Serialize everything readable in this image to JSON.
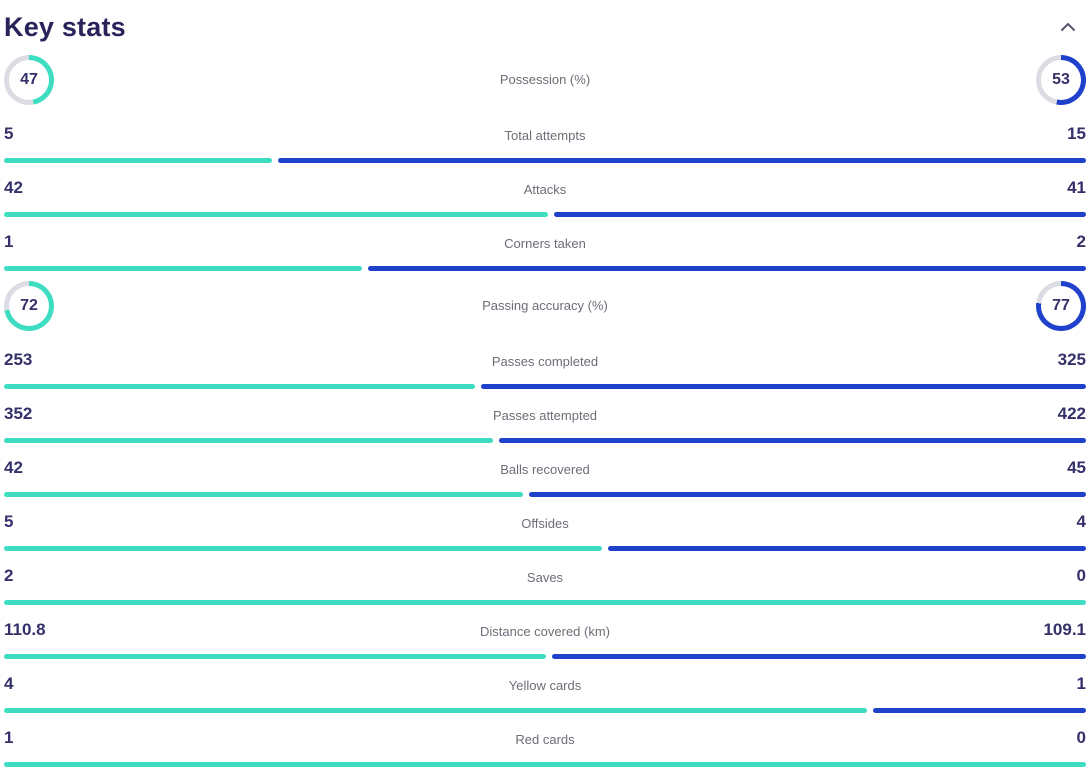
{
  "header": {
    "title": "Key stats",
    "collapse_icon": "chevron-up-icon"
  },
  "colors": {
    "home": "#3eddc1",
    "away": "#1f41cb",
    "track": "#dcdde4",
    "title": "#29235c",
    "number": "#343069",
    "label": "#6d6d78"
  },
  "chart_data": {
    "type": "bar",
    "title": "Key stats",
    "legend_position": "none",
    "series": [
      {
        "name": "home",
        "color": "#3eddc1"
      },
      {
        "name": "away",
        "color": "#1f41cb"
      }
    ],
    "rows": [
      {
        "type": "circle",
        "label": "Possession (%)",
        "home": 47,
        "away": 53
      },
      {
        "type": "bar",
        "label": "Total attempts",
        "home": 5,
        "away": 15
      },
      {
        "type": "bar",
        "label": "Attacks",
        "home": 42,
        "away": 41
      },
      {
        "type": "bar",
        "label": "Corners taken",
        "home": 1,
        "away": 2
      },
      {
        "type": "circle",
        "label": "Passing accuracy (%)",
        "home": 72,
        "away": 77
      },
      {
        "type": "bar",
        "label": "Passes completed",
        "home": 253,
        "away": 325
      },
      {
        "type": "bar",
        "label": "Passes attempted",
        "home": 352,
        "away": 422
      },
      {
        "type": "bar",
        "label": "Balls recovered",
        "home": 42,
        "away": 45
      },
      {
        "type": "bar",
        "label": "Offsides",
        "home": 5,
        "away": 4
      },
      {
        "type": "bar",
        "label": "Saves",
        "home": 2,
        "away": 0
      },
      {
        "type": "bar",
        "label": "Distance covered (km)",
        "home": 110.8,
        "away": 109.1
      },
      {
        "type": "bar",
        "label": "Yellow cards",
        "home": 4,
        "away": 1
      },
      {
        "type": "bar",
        "label": "Red cards",
        "home": 1,
        "away": 0
      }
    ]
  }
}
